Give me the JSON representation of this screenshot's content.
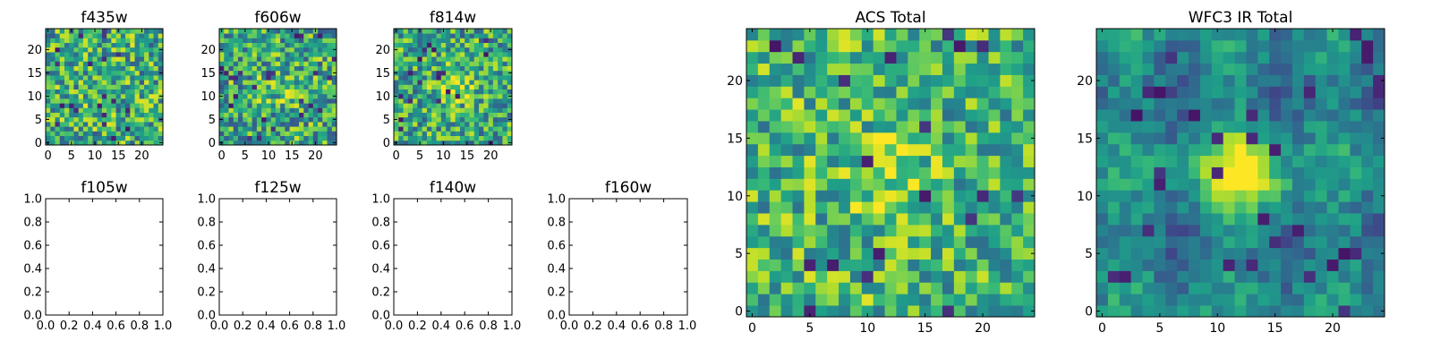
{
  "figure": {
    "background": "#ffffff"
  },
  "colormap": {
    "name": "viridis",
    "stops": [
      "#440154",
      "#482878",
      "#3e4989",
      "#31688e",
      "#26828e",
      "#1f9e89",
      "#35b779",
      "#6ece58",
      "#b5de2b",
      "#fde725"
    ]
  },
  "chart_data": [
    {
      "id": "f435w",
      "type": "heatmap",
      "title": "f435w",
      "grid_size": 25,
      "xlim": [
        -0.5,
        24.5
      ],
      "ylim": [
        -0.5,
        24.5
      ],
      "xticks": [
        0,
        5,
        10,
        15,
        20
      ],
      "yticks": [
        0,
        5,
        10,
        15,
        20
      ],
      "tick_labels_x": [
        "0",
        "5",
        "10",
        "15",
        "20"
      ],
      "tick_labels_y": [
        "0",
        "5",
        "10",
        "15",
        "20"
      ],
      "noise": {
        "mean": 0.62,
        "spread": 0.34,
        "seed": 11,
        "source_peak": 0.0
      }
    },
    {
      "id": "f606w",
      "type": "heatmap",
      "title": "f606w",
      "grid_size": 25,
      "xlim": [
        -0.5,
        24.5
      ],
      "ylim": [
        -0.5,
        24.5
      ],
      "xticks": [
        0,
        5,
        10,
        15,
        20
      ],
      "yticks": [
        0,
        5,
        10,
        15,
        20
      ],
      "tick_labels_x": [
        "0",
        "5",
        "10",
        "15",
        "20"
      ],
      "tick_labels_y": [
        "0",
        "5",
        "10",
        "15",
        "20"
      ],
      "noise": {
        "mean": 0.6,
        "spread": 0.34,
        "seed": 23,
        "source_peak": 0.15
      }
    },
    {
      "id": "f814w",
      "type": "heatmap",
      "title": "f814w",
      "grid_size": 25,
      "xlim": [
        -0.5,
        24.5
      ],
      "ylim": [
        -0.5,
        24.5
      ],
      "xticks": [
        0,
        5,
        10,
        15,
        20
      ],
      "yticks": [
        0,
        5,
        10,
        15,
        20
      ],
      "tick_labels_x": [
        "0",
        "5",
        "10",
        "15",
        "20"
      ],
      "tick_labels_y": [
        "0",
        "5",
        "10",
        "15",
        "20"
      ],
      "noise": {
        "mean": 0.6,
        "spread": 0.32,
        "seed": 37,
        "source_peak": 0.3
      }
    },
    {
      "id": "f105w",
      "type": "empty",
      "title": "f105w",
      "xlim": [
        0,
        1
      ],
      "ylim": [
        0,
        1
      ],
      "tick_labels_x": [
        "0.0",
        "0.2",
        "0.4",
        "0.6",
        "0.8",
        "1.0"
      ],
      "tick_labels_y": [
        "0.0",
        "0.2",
        "0.4",
        "0.6",
        "0.8",
        "1.0"
      ]
    },
    {
      "id": "f125w",
      "type": "empty",
      "title": "f125w",
      "xlim": [
        0,
        1
      ],
      "ylim": [
        0,
        1
      ],
      "tick_labels_x": [
        "0.0",
        "0.2",
        "0.4",
        "0.6",
        "0.8",
        "1.0"
      ],
      "tick_labels_y": [
        "0.0",
        "0.2",
        "0.4",
        "0.6",
        "0.8",
        "1.0"
      ]
    },
    {
      "id": "f140w",
      "type": "empty",
      "title": "f140w",
      "xlim": [
        0,
        1
      ],
      "ylim": [
        0,
        1
      ],
      "tick_labels_x": [
        "0.0",
        "0.2",
        "0.4",
        "0.6",
        "0.8",
        "1.0"
      ],
      "tick_labels_y": [
        "0.0",
        "0.2",
        "0.4",
        "0.6",
        "0.8",
        "1.0"
      ]
    },
    {
      "id": "f160w",
      "type": "empty",
      "title": "f160w",
      "xlim": [
        0,
        1
      ],
      "ylim": [
        0,
        1
      ],
      "tick_labels_x": [
        "0.0",
        "0.2",
        "0.4",
        "0.6",
        "0.8",
        "1.0"
      ],
      "tick_labels_y": [
        "0.0",
        "0.2",
        "0.4",
        "0.6",
        "0.8",
        "1.0"
      ]
    },
    {
      "id": "acs_total",
      "type": "heatmap",
      "title": "ACS Total",
      "grid_size": 25,
      "xlim": [
        -0.5,
        24.5
      ],
      "ylim": [
        -0.5,
        24.5
      ],
      "xticks": [
        0,
        5,
        10,
        15,
        20
      ],
      "yticks": [
        0,
        5,
        10,
        15,
        20
      ],
      "tick_labels_x": [
        "0",
        "5",
        "10",
        "15",
        "20"
      ],
      "tick_labels_y": [
        "0",
        "5",
        "10",
        "15",
        "20"
      ],
      "noise": {
        "mean": 0.66,
        "spread": 0.3,
        "seed": 53,
        "source_peak": 0.2
      }
    },
    {
      "id": "wfc3_ir_total",
      "type": "heatmap",
      "title": "WFC3 IR Total",
      "grid_size": 25,
      "xlim": [
        -0.5,
        24.5
      ],
      "ylim": [
        -0.5,
        24.5
      ],
      "xticks": [
        0,
        5,
        10,
        15,
        20
      ],
      "yticks": [
        0,
        5,
        10,
        15,
        20
      ],
      "tick_labels_x": [
        "0",
        "5",
        "10",
        "15",
        "20"
      ],
      "tick_labels_y": [
        "0",
        "5",
        "10",
        "15",
        "20"
      ],
      "noise": {
        "mean": 0.45,
        "spread": 0.14,
        "seed": 71,
        "source_peak": 0.55
      }
    }
  ]
}
